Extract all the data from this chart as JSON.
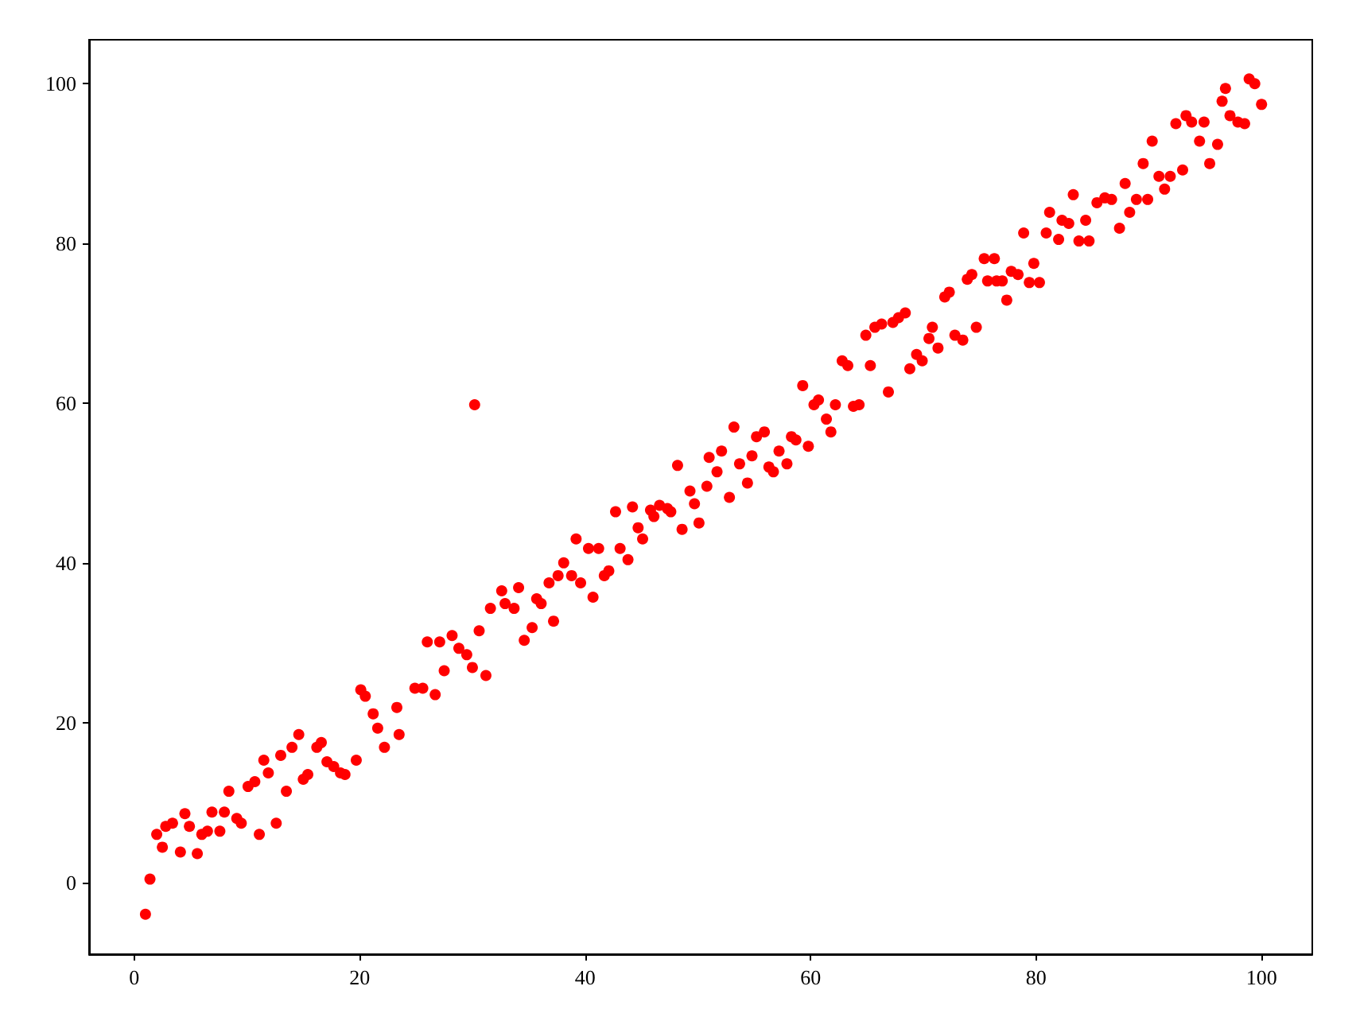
{
  "chart_data": {
    "type": "scatter",
    "color": "#ff0000",
    "marker": "circle",
    "xlim": [
      -4,
      104.5
    ],
    "ylim": [
      -9,
      105.5
    ],
    "xticks": [
      0,
      20,
      40,
      60,
      80,
      100
    ],
    "yticks": [
      0,
      20,
      40,
      60,
      80,
      100
    ],
    "x": [
      1,
      1.4,
      2,
      2.5,
      2.8,
      3.4,
      4.1,
      4.5,
      4.9,
      5.6,
      6,
      6.5,
      6.9,
      7.6,
      8,
      8.4,
      9.1,
      9.5,
      10.1,
      10.7,
      11.1,
      11.5,
      11.9,
      12.6,
      13,
      13.5,
      14,
      14.6,
      15,
      15.4,
      16.2,
      16.6,
      17.1,
      17.7,
      18.3,
      18.7,
      19.7,
      20.1,
      20.5,
      21.2,
      21.6,
      22.2,
      23.3,
      23.5,
      24.9,
      25.6,
      26.7,
      26,
      27.1,
      27.5,
      28.2,
      28.8,
      29.5,
      30,
      31.2,
      30.2,
      30.6,
      31.6,
      32.6,
      32.9,
      33.7,
      34.1,
      34.6,
      35.3,
      35.7,
      36.1,
      36.8,
      37.2,
      37.6,
      38.1,
      38.8,
      39.2,
      39.6,
      40.3,
      40.7,
      41.2,
      41.7,
      42.1,
      42.7,
      43.1,
      43.8,
      44.2,
      44.7,
      45.1,
      45.8,
      46.1,
      46.6,
      47.3,
      47.6,
      48.2,
      48.6,
      49.3,
      49.7,
      50.1,
      50.8,
      51,
      51.7,
      52.1,
      52.8,
      53.2,
      53.7,
      54.4,
      54.8,
      55.2,
      55.9,
      56.3,
      56.7,
      57.2,
      57.9,
      58.3,
      58.7,
      59.3,
      59.8,
      60.3,
      60.7,
      61.4,
      61.8,
      62.2,
      62.8,
      63.3,
      63.8,
      64.3,
      64.9,
      65.3,
      65.7,
      66.3,
      66.9,
      67.3,
      67.8,
      68.4,
      68.8,
      69.4,
      69.9,
      70.5,
      70.8,
      71.3,
      71.9,
      72.3,
      72.8,
      73.5,
      73.9,
      74.3,
      74.7,
      75.7,
      76.5,
      77.4,
      75.4,
      76.3,
      77,
      77.8,
      78.4,
      78.9,
      79.4,
      79.8,
      80.3,
      80.9,
      81.2,
      82,
      82.3,
      82.9,
      83.3,
      83.8,
      84.4,
      84.7,
      85.4,
      86.1,
      86.7,
      87.4,
      87.9,
      88.3,
      88.9,
      89.5,
      89.9,
      90.3,
      90.9,
      91.4,
      91.9,
      92.4,
      93,
      93.3,
      93.8,
      94.5,
      94.9,
      95.4,
      96.1,
      96.5,
      96.8,
      97.2,
      97.9,
      98.5,
      98.9,
      99.4,
      100
    ],
    "values": [
      -4,
      0.4,
      6,
      4.4,
      7,
      7.4,
      3.8,
      8.6,
      7,
      3.6,
      6,
      6.4,
      8.8,
      6.4,
      8.8,
      11.4,
      8,
      7.4,
      12,
      12.6,
      6,
      15.3,
      13.7,
      7.4,
      15.9,
      11.4,
      16.9,
      18.5,
      12.9,
      13.5,
      16.9,
      17.5,
      15.1,
      14.5,
      13.7,
      13.5,
      15.3,
      24.1,
      23.3,
      21.1,
      19.3,
      16.9,
      21.9,
      18.5,
      24.3,
      24.3,
      23.5,
      30.1,
      30.1,
      26.5,
      30.9,
      29.3,
      28.5,
      26.9,
      25.9,
      59.8,
      31.5,
      34.3,
      36.5,
      34.9,
      34.3,
      36.9,
      30.3,
      31.9,
      35.5,
      34.9,
      37.5,
      32.7,
      38.4,
      40,
      38.4,
      43,
      37.5,
      41.8,
      35.7,
      41.8,
      38.4,
      39,
      46.4,
      41.8,
      40.4,
      47,
      44.4,
      43,
      46.6,
      45.8,
      47.2,
      46.8,
      46.4,
      52.2,
      44.2,
      49,
      47.4,
      45,
      49.6,
      53.2,
      51.4,
      54,
      48.2,
      57,
      52.4,
      50,
      53.4,
      55.8,
      56.4,
      52,
      51.4,
      54,
      52.4,
      55.8,
      55.4,
      62.2,
      54.6,
      59.8,
      60.4,
      58,
      56.4,
      59.8,
      65.3,
      64.7,
      59.6,
      59.8,
      68.5,
      64.7,
      69.5,
      69.9,
      61.4,
      70.1,
      70.7,
      71.3,
      64.3,
      66.1,
      65.3,
      68.1,
      69.5,
      66.9,
      73.3,
      73.9,
      68.5,
      67.9,
      75.5,
      76.1,
      69.5,
      75.3,
      75.3,
      72.9,
      78.1,
      78.1,
      75.3,
      76.5,
      76.1,
      81.3,
      75.1,
      77.5,
      75.1,
      81.3,
      83.9,
      80.5,
      82.9,
      82.5,
      86.1,
      80.3,
      82.9,
      80.3,
      85.1,
      85.7,
      85.5,
      81.9,
      87.5,
      83.9,
      85.5,
      90,
      85.5,
      92.8,
      88.4,
      86.8,
      88.4,
      95,
      89.2,
      96,
      95.2,
      92.8,
      95.2,
      90,
      92.4,
      97.8,
      99.4,
      96,
      95.2,
      95,
      100.6,
      100,
      97.4
    ]
  }
}
